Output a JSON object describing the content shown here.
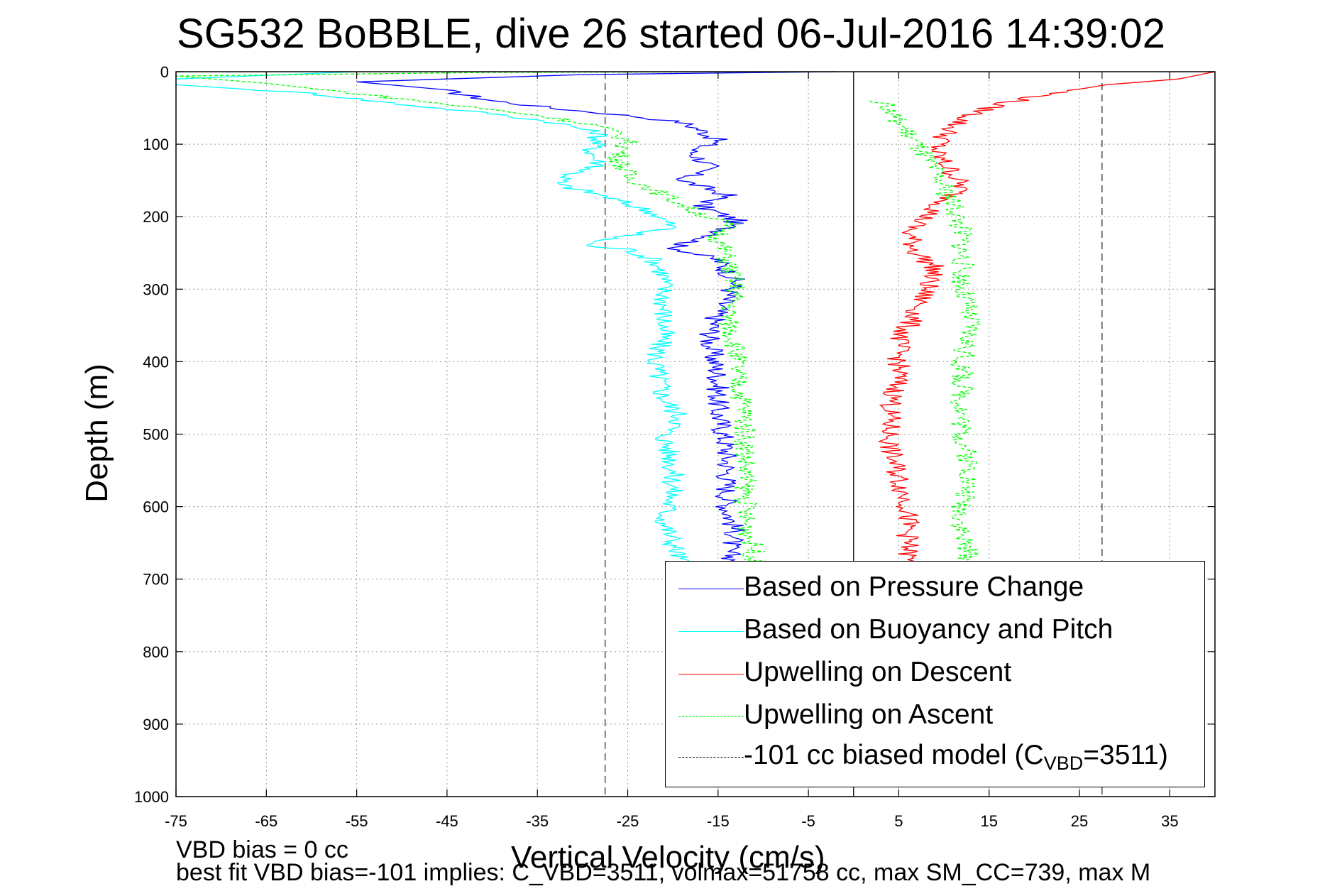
{
  "title": "SG532 BoBBLE, dive 26 started 06-Jul-2016 14:39:02",
  "footnotes": {
    "line1": "VBD bias = 0 cc",
    "line2": "best fit VBD bias=-101 implies: C_VBD=3511, volmax=51758 cc, max SM_CC=739, max M"
  },
  "chart_data": {
    "type": "line",
    "title": "SG532 BoBBLE, dive 26 started 06-Jul-2016 14:39:02",
    "xlabel": "Vertical Velocity (cm/s)",
    "ylabel": "Depth (m)",
    "xlim": [
      -75,
      40
    ],
    "ylim": [
      0,
      1000
    ],
    "y_reversed": true,
    "grid": true,
    "legend_position": "bottom-right",
    "x_ticks": [
      "-75",
      "-65",
      "-55",
      "-45",
      "-35",
      "-25",
      "-15",
      "-5",
      "5",
      "15",
      "25",
      "35"
    ],
    "y_ticks": [
      "0",
      "100",
      "200",
      "300",
      "400",
      "500",
      "600",
      "700",
      "800",
      "900",
      "1000"
    ],
    "reference_lines": {
      "solid_vertical_x": 0,
      "dashed_vertical_x": [
        -27.5,
        27.5
      ]
    },
    "series": [
      {
        "name": "Based on Pressure Change",
        "color": "#0000ff",
        "style": "solid",
        "points": [
          [
            -2,
            0
          ],
          [
            -30,
            4
          ],
          [
            -55,
            14
          ],
          [
            -46,
            24
          ],
          [
            -40,
            40
          ],
          [
            -32,
            52
          ],
          [
            -27,
            58
          ],
          [
            -24,
            62
          ],
          [
            -19,
            70
          ],
          [
            -17,
            80
          ],
          [
            -15,
            95
          ],
          [
            -18,
            110
          ],
          [
            -16,
            130
          ],
          [
            -19,
            150
          ],
          [
            -14,
            170
          ],
          [
            -17,
            185
          ],
          [
            -13,
            205
          ],
          [
            -15,
            225
          ],
          [
            -20,
            242
          ],
          [
            -15,
            260
          ],
          [
            -13,
            290
          ],
          [
            -15,
            330
          ],
          [
            -16,
            370
          ],
          [
            -15,
            420
          ],
          [
            -15,
            470
          ],
          [
            -14,
            520
          ],
          [
            -14,
            560
          ],
          [
            -14,
            600
          ],
          [
            -13,
            640
          ],
          [
            -14,
            660
          ],
          [
            -13,
            679
          ]
        ]
      },
      {
        "name": "Based on Buoyancy and Pitch",
        "color": "#00ffff",
        "style": "solid",
        "points": [
          [
            -55,
            0
          ],
          [
            -75,
            10
          ],
          [
            -75,
            18
          ],
          [
            -60,
            30
          ],
          [
            -50,
            45
          ],
          [
            -40,
            58
          ],
          [
            -33,
            70
          ],
          [
            -28,
            85
          ],
          [
            -29,
            110
          ],
          [
            -28,
            130
          ],
          [
            -31,
            140
          ],
          [
            -33,
            155
          ],
          [
            -28,
            170
          ],
          [
            -22,
            195
          ],
          [
            -20,
            215
          ],
          [
            -27,
            230
          ],
          [
            -30,
            240
          ],
          [
            -25,
            245
          ],
          [
            -22,
            260
          ],
          [
            -21,
            280
          ],
          [
            -21,
            310
          ],
          [
            -21,
            360
          ],
          [
            -22,
            400
          ],
          [
            -21,
            450
          ],
          [
            -19,
            480
          ],
          [
            -21,
            500
          ],
          [
            -20,
            540
          ],
          [
            -20,
            580
          ],
          [
            -21,
            620
          ],
          [
            -20,
            650
          ],
          [
            -19,
            679
          ]
        ]
      },
      {
        "name": "Upwelling on Descent",
        "color": "#ff0000",
        "style": "solid",
        "points": [
          [
            40,
            0
          ],
          [
            36,
            10
          ],
          [
            28,
            18
          ],
          [
            22,
            30
          ],
          [
            16,
            45
          ],
          [
            13,
            60
          ],
          [
            11,
            75
          ],
          [
            10,
            90
          ],
          [
            9,
            110
          ],
          [
            10,
            125
          ],
          [
            11,
            140
          ],
          [
            12,
            160
          ],
          [
            10,
            180
          ],
          [
            8,
            200
          ],
          [
            6,
            220
          ],
          [
            7,
            250
          ],
          [
            9,
            270
          ],
          [
            8,
            300
          ],
          [
            7,
            330
          ],
          [
            5,
            370
          ],
          [
            5,
            420
          ],
          [
            4,
            470
          ],
          [
            4,
            520
          ],
          [
            5,
            560
          ],
          [
            6,
            600
          ],
          [
            6,
            640
          ],
          [
            6,
            679
          ]
        ]
      },
      {
        "name": "Upwelling on Ascent",
        "color": "#00ff00",
        "style": "dashed",
        "points": [
          [
            -5,
            0
          ],
          [
            -40,
            1
          ],
          [
            -75,
            6
          ],
          [
            -65,
            16
          ],
          [
            -55,
            30
          ],
          [
            -45,
            45
          ],
          [
            -35,
            60
          ],
          [
            -28,
            75
          ],
          [
            -25,
            95
          ],
          [
            -26,
            120
          ],
          [
            -25,
            145
          ],
          [
            -21,
            170
          ],
          [
            -18,
            190
          ],
          [
            -14,
            210
          ],
          [
            -15,
            230
          ],
          [
            -14,
            260
          ],
          [
            -13,
            300
          ],
          [
            -14,
            340
          ],
          [
            -13,
            380
          ],
          [
            -13,
            420
          ],
          [
            -12,
            470
          ],
          [
            -12,
            520
          ],
          [
            -12,
            570
          ],
          [
            -12,
            620
          ],
          [
            -11,
            660
          ],
          [
            -11,
            679
          ],
          [
            3,
            40
          ],
          [
            5,
            70
          ],
          [
            7,
            100
          ],
          [
            9,
            140
          ],
          [
            11,
            180
          ],
          [
            12,
            220
          ],
          [
            12,
            260
          ],
          [
            12,
            300
          ],
          [
            13,
            350
          ],
          [
            12,
            400
          ],
          [
            12,
            450
          ],
          [
            12,
            500
          ],
          [
            13,
            550
          ],
          [
            12,
            600
          ],
          [
            12,
            640
          ],
          [
            13,
            679
          ]
        ]
      },
      {
        "name": "-101 cc biased model (C",
        "name_sub": "VBD",
        "name_tail": "=3511)",
        "color": "#000000",
        "style": "dashed"
      }
    ]
  }
}
